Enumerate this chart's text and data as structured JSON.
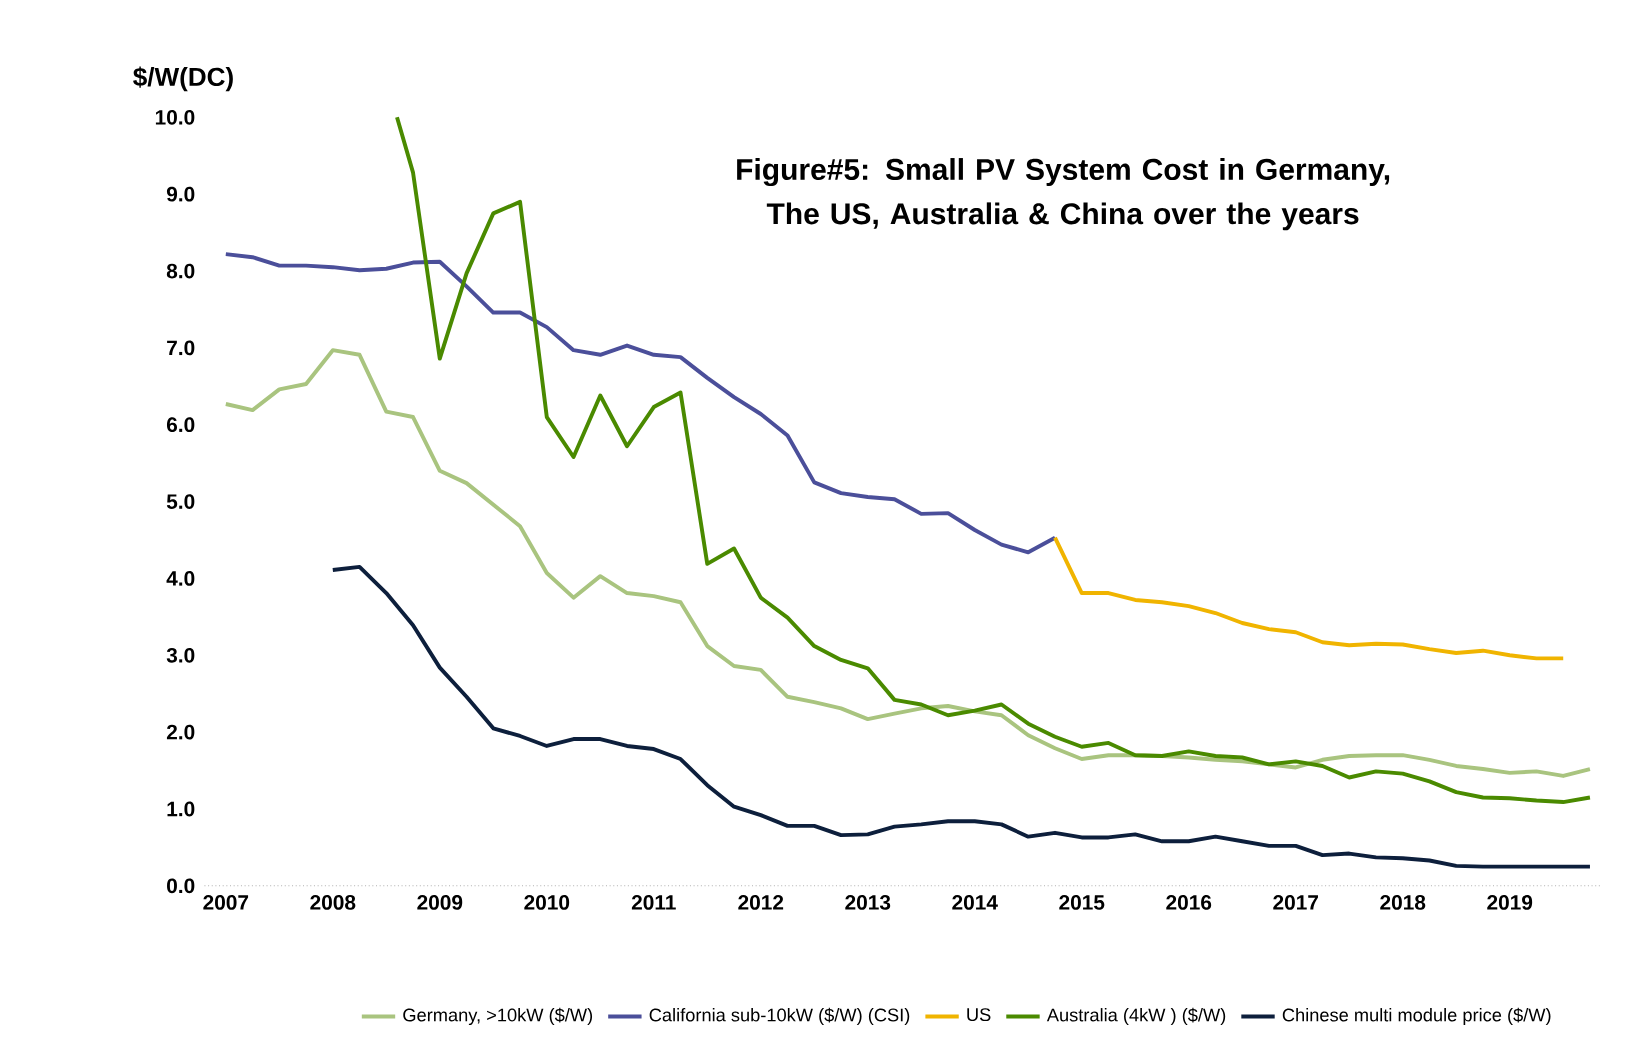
{
  "chart_data": {
    "type": "line",
    "title": "Figure#5: Small PV System Cost in Germany, The US, Australia & China over the years",
    "ylabel": "$/W(DC)",
    "xlim": [
      2006.8,
      2019.85
    ],
    "ylim": [
      0,
      10
    ],
    "xticks": [
      2007,
      2008,
      2009,
      2010,
      2011,
      2012,
      2013,
      2014,
      2015,
      2016,
      2017,
      2018,
      2019
    ],
    "yticks": [
      {
        "value": 0,
        "label": "0.0"
      },
      {
        "value": 1,
        "label": "1.0"
      },
      {
        "value": 2,
        "label": "2.0"
      },
      {
        "value": 3,
        "label": "3.0"
      },
      {
        "value": 4,
        "label": "4.0"
      },
      {
        "value": 5,
        "label": "5.0"
      },
      {
        "value": 6,
        "label": "6.0"
      },
      {
        "value": 7,
        "label": "7.0"
      },
      {
        "value": 8,
        "label": "8.0"
      },
      {
        "value": 9,
        "label": "9.0"
      },
      {
        "value": 10,
        "label": "10.0"
      }
    ],
    "legend": "bottom",
    "marker": "none",
    "line_style": "solid",
    "series": [
      {
        "name": "Germany, >10kW ($/W)",
        "color": "#a9c47f",
        "x": [
          2007,
          2007.25,
          2007.5,
          2007.75,
          2008,
          2008.25,
          2008.5,
          2008.75,
          2009,
          2009.25,
          2009.5,
          2009.75,
          2010,
          2010.25,
          2010.5,
          2010.75,
          2011,
          2011.25,
          2011.5,
          2011.75,
          2012,
          2012.25,
          2012.5,
          2012.75,
          2013,
          2013.25,
          2013.5,
          2013.75,
          2014,
          2014.25,
          2014.5,
          2014.75,
          2015,
          2015.25,
          2015.5,
          2015.75,
          2016,
          2016.25,
          2016.5,
          2016.75,
          2017,
          2017.25,
          2017.5,
          2017.75,
          2018,
          2018.25,
          2018.5,
          2018.75,
          2019,
          2019.25,
          2019.5,
          2019.75
        ],
        "values": [
          6.27,
          6.19,
          6.46,
          6.53,
          6.97,
          6.91,
          6.17,
          6.1,
          5.4,
          5.24,
          4.96,
          4.68,
          4.07,
          3.75,
          4.03,
          3.81,
          3.77,
          3.69,
          3.12,
          2.86,
          2.81,
          2.46,
          2.39,
          2.31,
          2.17,
          2.24,
          2.31,
          2.34,
          2.27,
          2.22,
          1.96,
          1.79,
          1.65,
          1.7,
          1.7,
          1.69,
          1.67,
          1.64,
          1.62,
          1.58,
          1.54,
          1.64,
          1.69,
          1.7,
          1.7,
          1.64,
          1.56,
          1.52,
          1.47,
          1.49,
          1.43,
          1.52
        ]
      },
      {
        "name": "California sub-10kW ($/W) (CSI)",
        "color": "#4b4f9a",
        "x": [
          2007,
          2007.25,
          2007.5,
          2007.75,
          2008,
          2008.25,
          2008.5,
          2008.75,
          2009,
          2009.25,
          2009.5,
          2009.75,
          2010,
          2010.25,
          2010.5,
          2010.75,
          2011,
          2011.25,
          2011.5,
          2011.75,
          2012,
          2012.25,
          2012.5,
          2012.75,
          2013,
          2013.25,
          2013.5,
          2013.75,
          2014,
          2014.25,
          2014.5,
          2014.75
        ],
        "values": [
          8.22,
          8.18,
          8.07,
          8.07,
          8.05,
          8.01,
          8.03,
          8.11,
          8.12,
          7.8,
          7.46,
          7.46,
          7.27,
          6.97,
          6.91,
          7.03,
          6.91,
          6.88,
          6.61,
          6.36,
          6.14,
          5.86,
          5.25,
          5.11,
          5.06,
          5.03,
          4.84,
          4.85,
          4.63,
          4.44,
          4.34,
          4.53
        ]
      },
      {
        "name": "US",
        "color": "#f0b400",
        "x": [
          2014.75,
          2015,
          2015.25,
          2015.5,
          2015.75,
          2016,
          2016.25,
          2016.5,
          2016.75,
          2017,
          2017.25,
          2017.5,
          2017.75,
          2018,
          2018.25,
          2018.5,
          2018.75,
          2019,
          2019.25,
          2019.5
        ],
        "values": [
          4.53,
          3.81,
          3.81,
          3.72,
          3.69,
          3.64,
          3.55,
          3.42,
          3.34,
          3.3,
          3.17,
          3.13,
          3.15,
          3.14,
          3.08,
          3.03,
          3.06,
          3.0,
          2.96,
          2.96
        ]
      },
      {
        "name": "Australia (4kW ) ($/W)",
        "color": "#4a8a00",
        "x": [
          2008.6,
          2008.75,
          2009,
          2009.25,
          2009.5,
          2009.75,
          2010,
          2010.25,
          2010.5,
          2010.75,
          2011,
          2011.25,
          2011.5,
          2011.75,
          2012,
          2012.25,
          2012.5,
          2012.75,
          2013,
          2013.25,
          2013.5,
          2013.75,
          2014,
          2014.25,
          2014.5,
          2014.75,
          2015,
          2015.25,
          2015.5,
          2015.75,
          2016,
          2016.25,
          2016.5,
          2016.75,
          2017,
          2017.25,
          2017.5,
          2017.75,
          2018,
          2018.25,
          2018.5,
          2018.75,
          2019,
          2019.25,
          2019.5,
          2019.75
        ],
        "values": [
          10.0,
          9.28,
          6.86,
          7.97,
          8.75,
          8.9,
          6.1,
          5.58,
          6.38,
          5.72,
          6.23,
          6.42,
          4.19,
          4.39,
          3.75,
          3.49,
          3.12,
          2.94,
          2.83,
          2.42,
          2.36,
          2.22,
          2.28,
          2.36,
          2.11,
          1.94,
          1.81,
          1.86,
          1.7,
          1.69,
          1.75,
          1.69,
          1.67,
          1.58,
          1.62,
          1.56,
          1.41,
          1.49,
          1.46,
          1.36,
          1.22,
          1.15,
          1.14,
          1.11,
          1.09,
          1.15
        ]
      },
      {
        "name": "Chinese multi module price ($/W)",
        "color": "#0d1f3c",
        "x": [
          2008,
          2008.25,
          2008.5,
          2008.75,
          2009,
          2009.25,
          2009.5,
          2009.75,
          2010,
          2010.25,
          2010.5,
          2010.75,
          2011,
          2011.25,
          2011.5,
          2011.75,
          2012,
          2012.25,
          2012.5,
          2012.75,
          2013,
          2013.25,
          2013.5,
          2013.75,
          2014,
          2014.25,
          2014.5,
          2014.75,
          2015,
          2015.25,
          2015.5,
          2015.75,
          2016,
          2016.25,
          2016.5,
          2016.75,
          2017,
          2017.25,
          2017.5,
          2017.75,
          2018,
          2018.25,
          2018.5,
          2018.75,
          2019,
          2019.25,
          2019.5,
          2019.75
        ],
        "values": [
          4.11,
          4.15,
          3.81,
          3.39,
          2.84,
          2.46,
          2.05,
          1.95,
          1.82,
          1.91,
          1.91,
          1.82,
          1.78,
          1.65,
          1.31,
          1.03,
          0.92,
          0.78,
          0.78,
          0.66,
          0.67,
          0.77,
          0.8,
          0.84,
          0.84,
          0.8,
          0.64,
          0.69,
          0.63,
          0.63,
          0.67,
          0.58,
          0.58,
          0.64,
          0.58,
          0.52,
          0.52,
          0.4,
          0.42,
          0.37,
          0.36,
          0.33,
          0.26,
          0.25,
          0.25,
          0.25,
          0.25,
          0.25
        ]
      }
    ]
  }
}
